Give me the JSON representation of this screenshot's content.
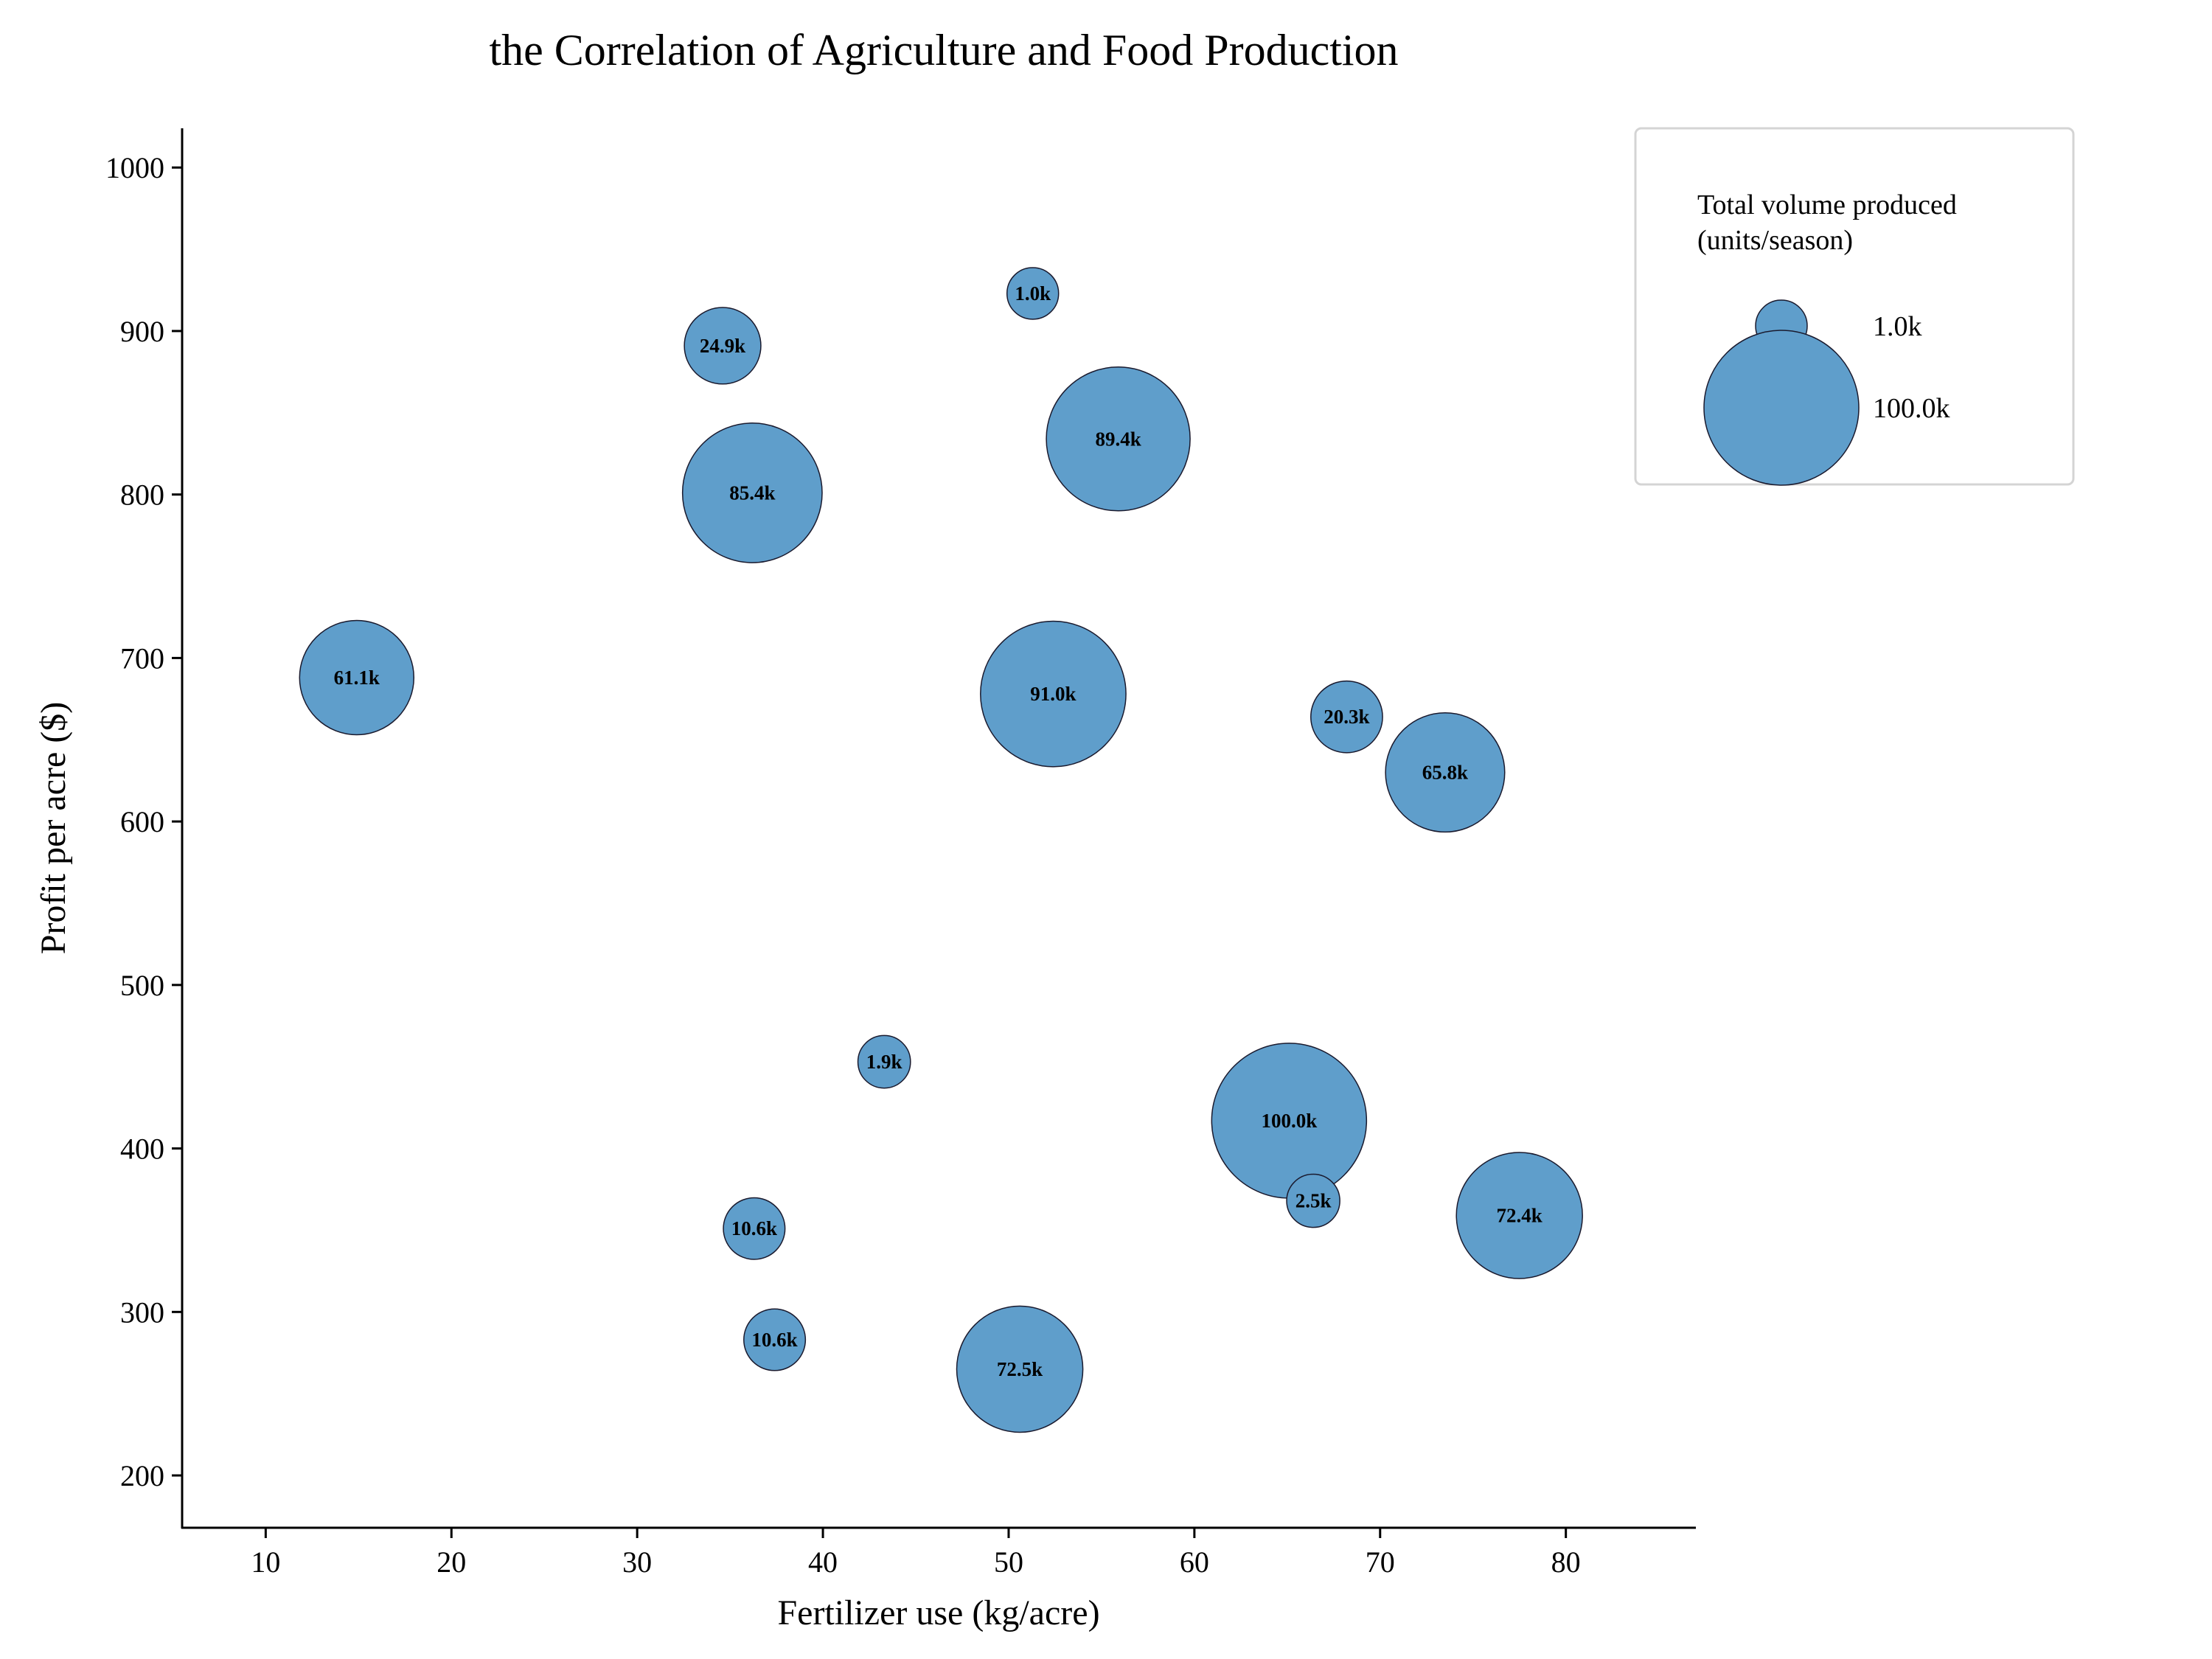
{
  "chart_data": {
    "type": "scatter",
    "title": "the Correlation of Agriculture and Food Production",
    "xlabel": "Fertilizer use (kg/acre)",
    "ylabel": "Profit per acre ($)",
    "xlim": [
      5.5,
      87
    ],
    "ylim": [
      168,
      1024
    ],
    "xticks": [
      10,
      20,
      30,
      40,
      50,
      60,
      70,
      80
    ],
    "yticks": [
      200,
      300,
      400,
      500,
      600,
      700,
      800,
      900,
      1000
    ],
    "grid": false,
    "color": "#5f9ecb",
    "edge_color": "#1a1a2e",
    "size_encoding": "Total volume produced (units/season)",
    "points": [
      {
        "x": 51.3,
        "y": 923,
        "size": 1.0,
        "label": "1.0k"
      },
      {
        "x": 34.6,
        "y": 891,
        "size": 24.9,
        "label": "24.9k"
      },
      {
        "x": 55.9,
        "y": 834,
        "size": 89.4,
        "label": "89.4k"
      },
      {
        "x": 36.2,
        "y": 801,
        "size": 85.4,
        "label": "85.4k"
      },
      {
        "x": 14.9,
        "y": 688,
        "size": 61.1,
        "label": "61.1k"
      },
      {
        "x": 52.4,
        "y": 678,
        "size": 91.0,
        "label": "91.0k"
      },
      {
        "x": 68.2,
        "y": 664,
        "size": 20.3,
        "label": "20.3k"
      },
      {
        "x": 73.5,
        "y": 630,
        "size": 65.8,
        "label": "65.8k"
      },
      {
        "x": 43.3,
        "y": 453,
        "size": 1.9,
        "label": "1.9k"
      },
      {
        "x": 65.1,
        "y": 417,
        "size": 100.0,
        "label": "100.0k"
      },
      {
        "x": 66.4,
        "y": 368,
        "size": 2.5,
        "label": "2.5k"
      },
      {
        "x": 77.5,
        "y": 359,
        "size": 72.4,
        "label": "72.4k"
      },
      {
        "x": 36.3,
        "y": 351,
        "size": 10.6,
        "label": "10.6k"
      },
      {
        "x": 37.4,
        "y": 283,
        "size": 10.6,
        "label": "10.6k"
      },
      {
        "x": 50.6,
        "y": 265,
        "size": 72.5,
        "label": "72.5k"
      }
    ],
    "legend": {
      "title_lines": [
        "Total volume produced",
        "(units/season)"
      ],
      "placement": "top-right",
      "entries": [
        {
          "size": 1.0,
          "label": "1.0k"
        },
        {
          "size": 100.0,
          "label": "100.0k"
        }
      ]
    }
  }
}
